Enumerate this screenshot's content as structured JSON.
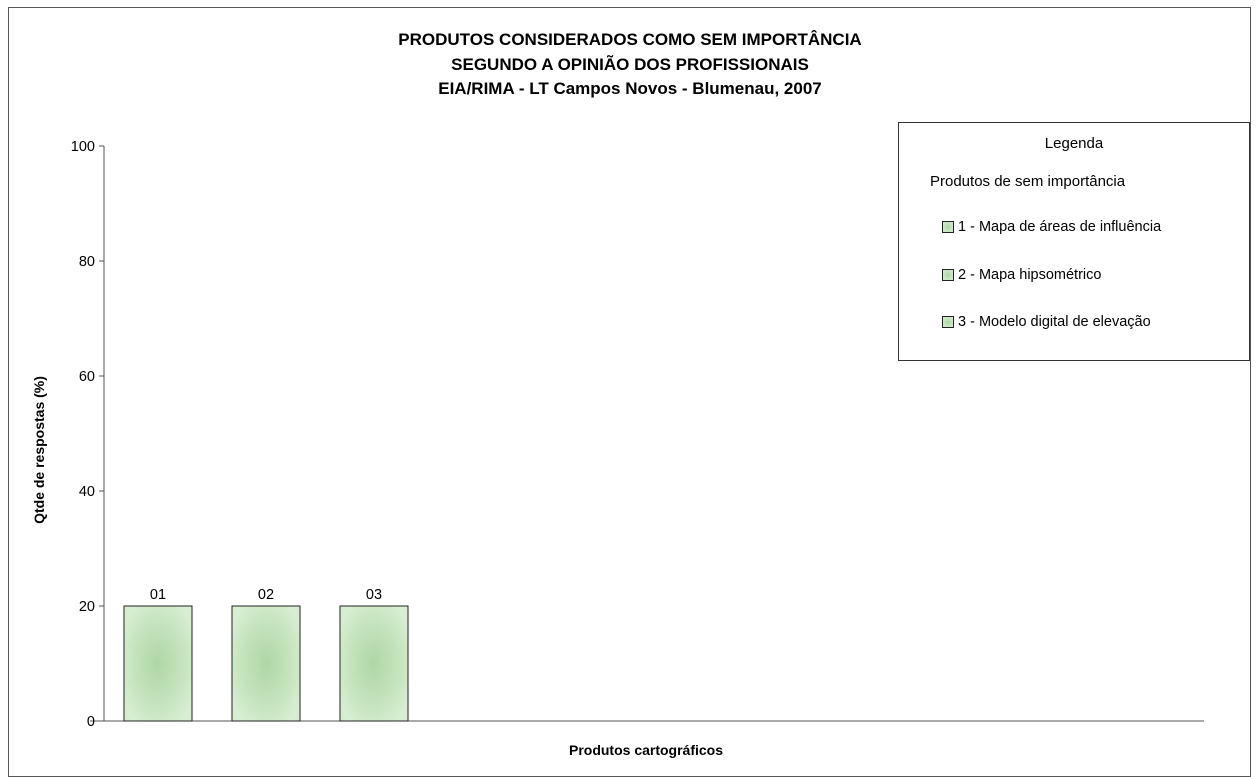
{
  "chart_data": {
    "type": "bar",
    "title": [
      "PRODUTOS CONSIDERADOS COMO SEM IMPORTÂNCIA",
      "SEGUNDO A OPINIÃO DOS PROFISSIONAIS",
      "EIA/RIMA - LT Campos Novos - Blumenau, 2007"
    ],
    "xlabel": "Produtos cartográficos",
    "ylabel": "Qtde de respostas (%)",
    "ylim": [
      0,
      100
    ],
    "yticks": [
      "0",
      "20",
      "40",
      "60",
      "80",
      "100"
    ],
    "categories": [
      "01",
      "02",
      "03"
    ],
    "values": [
      20,
      20,
      20
    ],
    "grid": false,
    "legend": {
      "title": "Legenda",
      "heading": "Produtos de sem importância",
      "items": [
        "1 - Mapa de áreas de influência",
        "2 - Mapa hipsométrico",
        "3 - Modelo digital de elevação"
      ],
      "placement": "top-right"
    }
  },
  "colors": {
    "bar_center": "#aed6a6",
    "bar_edge": "#d6ecd0",
    "bar_stroke": "#222222",
    "axis": "#555555"
  }
}
